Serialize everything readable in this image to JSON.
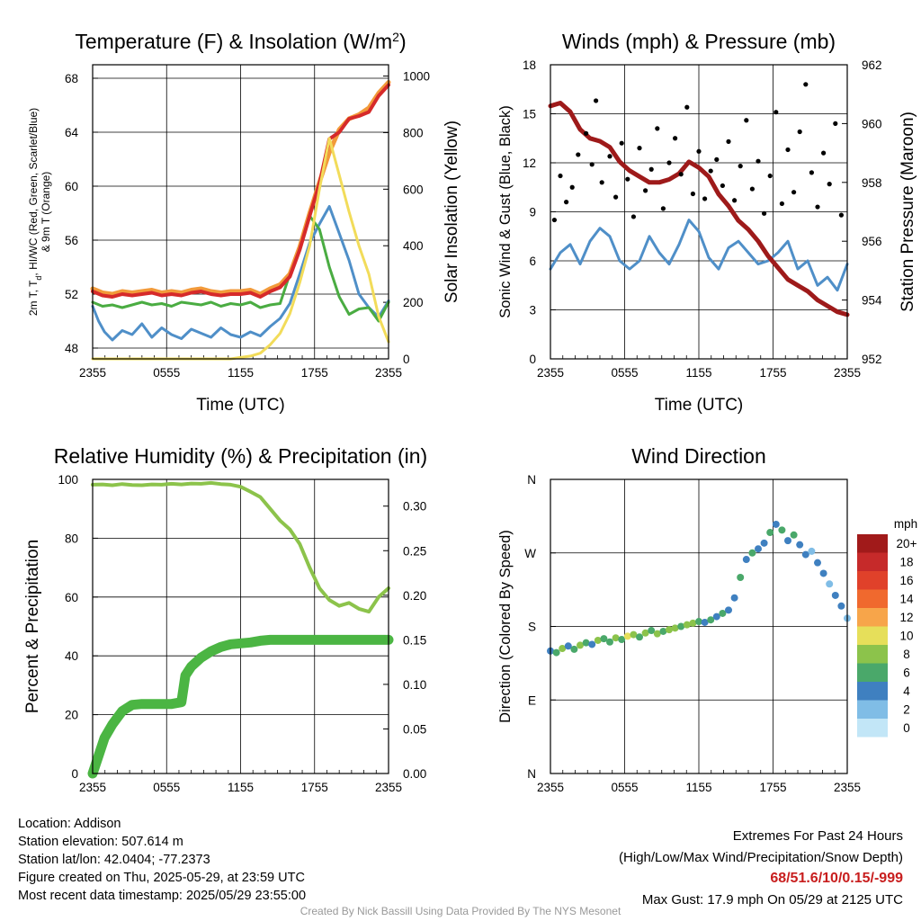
{
  "charts": [
    {
      "id": "temp",
      "type": "line",
      "title": "Temperature (F) & Insolation (W/m",
      "title_sup": "2",
      "title_close": ")",
      "xlabel": "Time (UTC)",
      "ylabel_line1": "2m T, T",
      "ylabel_sub": "d",
      "ylabel_line1_rest": ", HI/WC (Red, Green, Scarlet/Blue)",
      "ylabel_line2": "& 9m T (Orange)",
      "y2label": "Solar Insolation (Yellow)",
      "xticks": [
        "2355",
        "0555",
        "1155",
        "1755",
        "2355"
      ],
      "ylim": [
        47.2,
        69
      ],
      "yticks": [
        "48",
        "52",
        "56",
        "60",
        "64",
        "68"
      ],
      "y2lim": [
        0,
        1040
      ],
      "y2ticks": [
        "0",
        "200",
        "400",
        "600",
        "800",
        "1000"
      ],
      "series": [
        {
          "color": "#4f8fc8",
          "x": [
            0,
            0.3,
            0.6,
            1,
            1.5,
            2,
            2.5,
            3,
            3.5,
            4,
            4.5,
            5,
            5.5,
            6,
            6.5,
            7,
            7.5,
            8,
            8.5,
            9,
            9.5,
            10,
            10.5,
            11,
            11.5,
            12,
            12.5,
            13,
            13.5,
            14,
            14.5,
            15
          ],
          "y": [
            51.1,
            50.0,
            49.2,
            48.6,
            49.3,
            49.0,
            49.8,
            48.8,
            49.5,
            49.0,
            48.7,
            49.4,
            49.1,
            48.8,
            49.5,
            49.0,
            48.8,
            49.2,
            48.9,
            49.6,
            50.2,
            51.3,
            53.5,
            55.8,
            57.2,
            58.5,
            56.5,
            54.5,
            52.0,
            51.0,
            50.3,
            51.5
          ]
        },
        {
          "color": "#4aac42",
          "x": [
            0,
            0.5,
            1,
            1.5,
            2,
            2.5,
            3,
            3.5,
            4,
            4.5,
            5,
            5.5,
            6,
            6.5,
            7,
            7.5,
            8,
            8.5,
            9,
            9.5,
            10,
            10.5,
            11,
            11.5,
            12,
            12.5,
            13,
            13.5,
            14,
            14.5,
            15
          ],
          "y": [
            51.4,
            51.1,
            51.2,
            51.0,
            51.2,
            51.4,
            51.2,
            51.3,
            51.1,
            51.4,
            51.3,
            51.2,
            51.4,
            51.1,
            51.3,
            51.2,
            51.4,
            51.0,
            51.2,
            51.3,
            53.5,
            55.5,
            57.8,
            56.8,
            54.0,
            51.8,
            50.5,
            50.9,
            51.0,
            50.0,
            51.4
          ]
        },
        {
          "color": "#f29a3a",
          "width": 5,
          "x": [
            0,
            0.5,
            1,
            1.5,
            2,
            2.5,
            3,
            3.5,
            4,
            4.5,
            5,
            5.5,
            6,
            6.5,
            7,
            7.5,
            8,
            8.5,
            9,
            9.5,
            10,
            10.5,
            11,
            11.5,
            12,
            12.5,
            13,
            13.5,
            14,
            14.5,
            15
          ],
          "y": [
            52.4,
            52.1,
            52.0,
            52.2,
            52.1,
            52.2,
            52.3,
            52.1,
            52.2,
            52.1,
            52.3,
            52.4,
            52.2,
            52.1,
            52.2,
            52.2,
            52.3,
            52.0,
            52.4,
            52.7,
            53.5,
            55.5,
            58.0,
            60.3,
            62.5,
            64.2,
            65.0,
            65.3,
            65.8,
            66.9,
            67.7
          ]
        },
        {
          "color": "#d62a2a",
          "width": 4,
          "x": [
            0,
            0.5,
            1,
            1.5,
            2,
            2.5,
            3,
            3.5,
            4,
            4.5,
            5,
            5.5,
            6,
            6.5,
            7,
            7.5,
            8,
            8.5,
            9,
            9.5,
            10,
            10.5,
            11,
            11.5,
            12,
            12.5,
            13,
            13.5,
            14,
            14.5,
            15
          ],
          "y": [
            52.2,
            51.9,
            51.8,
            52.0,
            51.9,
            52.0,
            52.1,
            51.9,
            52.0,
            51.9,
            52.1,
            52.2,
            52.0,
            51.9,
            52.0,
            52.0,
            52.1,
            51.8,
            52.2,
            52.5,
            53.3,
            55.3,
            57.8,
            60.2,
            63.5,
            64.0,
            65.0,
            65.2,
            65.5,
            66.7,
            67.5
          ]
        },
        {
          "color": "#f2dc5a",
          "axis": "y2",
          "x": [
            0,
            1,
            2,
            3,
            4,
            5,
            6,
            7,
            7.5,
            8,
            8.5,
            9,
            9.5,
            10,
            10.5,
            11,
            11.5,
            12,
            12.5,
            13,
            13.5,
            14,
            14.5,
            15
          ],
          "y": [
            0,
            0,
            0,
            0,
            0,
            0,
            0,
            0,
            5,
            10,
            20,
            50,
            90,
            160,
            270,
            400,
            600,
            780,
            650,
            520,
            400,
            300,
            150,
            60
          ]
        }
      ]
    },
    {
      "id": "wind",
      "type": "line",
      "title": "Winds (mph) & Pressure (mb)",
      "xlabel": "Time (UTC)",
      "ylabel": "Sonic Wind & Gust (Blue, Black)",
      "y2label": "Station Pressure (Maroon)",
      "xticks": [
        "2355",
        "0555",
        "1155",
        "1755",
        "2355"
      ],
      "ylim": [
        0,
        18
      ],
      "yticks": [
        "0",
        "3",
        "6",
        "9",
        "12",
        "15",
        "18"
      ],
      "y2lim": [
        952,
        962
      ],
      "y2ticks": [
        "952",
        "954",
        "956",
        "958",
        "960",
        "962"
      ],
      "series": [
        {
          "color": "#4f8fc8",
          "x": [
            0,
            0.5,
            1,
            1.5,
            2,
            2.5,
            3,
            3.5,
            4,
            4.5,
            5,
            5.5,
            6,
            6.5,
            7,
            7.5,
            8,
            8.5,
            9,
            9.5,
            10,
            10.5,
            11,
            11.5,
            12,
            12.5,
            13,
            13.5,
            14,
            14.5,
            15
          ],
          "y": [
            5.5,
            6.5,
            7.0,
            5.8,
            7.2,
            8.0,
            7.5,
            6.0,
            5.5,
            6.0,
            7.5,
            6.5,
            5.8,
            7.0,
            8.5,
            7.8,
            6.2,
            5.5,
            6.8,
            7.2,
            6.5,
            5.8,
            6.0,
            6.5,
            7.2,
            5.5,
            6.0,
            4.5,
            5.0,
            4.2,
            5.8
          ]
        },
        {
          "color": "#9e1a1a",
          "width": 5,
          "axis": "y2",
          "x": [
            0,
            0.5,
            1,
            1.5,
            2,
            2.5,
            3,
            3.5,
            4,
            4.5,
            5,
            5.5,
            6,
            6.5,
            7,
            7.5,
            8,
            8.5,
            9,
            9.5,
            10,
            10.5,
            11,
            11.5,
            12,
            12.5,
            13,
            13.5,
            14,
            14.5,
            15
          ],
          "y": [
            960.6,
            960.7,
            960.4,
            959.8,
            959.5,
            959.4,
            959.2,
            958.7,
            958.4,
            958.2,
            958.0,
            958.0,
            958.1,
            958.3,
            958.7,
            958.5,
            958.2,
            957.6,
            957.2,
            956.7,
            956.4,
            956.0,
            955.5,
            955.1,
            954.7,
            954.5,
            954.3,
            954.0,
            953.8,
            953.6,
            953.5
          ]
        }
      ],
      "gust_points": {
        "color": "#000000",
        "x": [
          0.2,
          0.5,
          0.8,
          1.1,
          1.4,
          1.8,
          2.1,
          2.3,
          2.6,
          3.0,
          3.3,
          3.6,
          3.9,
          4.2,
          4.5,
          4.8,
          5.1,
          5.4,
          5.7,
          6.0,
          6.3,
          6.6,
          6.9,
          7.2,
          7.5,
          7.8,
          8.1,
          8.4,
          8.7,
          9.0,
          9.3,
          9.6,
          9.9,
          10.2,
          10.5,
          10.8,
          11.1,
          11.4,
          11.7,
          12.0,
          12.3,
          12.6,
          12.9,
          13.2,
          13.5,
          13.8,
          14.1,
          14.4,
          14.7
        ],
        "y": [
          8.5,
          11.2,
          9.6,
          10.5,
          12.5,
          13.8,
          11.9,
          15.8,
          10.8,
          12.4,
          9.9,
          13.2,
          11.0,
          8.7,
          12.9,
          10.3,
          11.6,
          14.1,
          9.2,
          12.0,
          13.5,
          11.3,
          15.4,
          10.1,
          12.7,
          9.8,
          11.5,
          12.2,
          10.6,
          13.3,
          9.7,
          11.8,
          14.6,
          10.4,
          12.1,
          8.9,
          11.2,
          15.1,
          9.5,
          12.8,
          10.2,
          13.9,
          16.8,
          11.4,
          9.3,
          12.6,
          10.7,
          14.4,
          8.8
        ]
      }
    },
    {
      "id": "rh",
      "type": "line",
      "title": "Relative Humidity (%) & Precipitation (in)",
      "xlabel": "",
      "ylabel": "Percent & Precipitation",
      "xticks": [
        "2355",
        "0555",
        "1155",
        "1755",
        "2355"
      ],
      "ylim": [
        0,
        100
      ],
      "yticks": [
        "0",
        "20",
        "40",
        "60",
        "80",
        "100"
      ],
      "y2lim": [
        0,
        0.33
      ],
      "y2ticks": [
        "0.00",
        "0.05",
        "0.10",
        "0.15",
        "0.20",
        "0.25",
        "0.30"
      ],
      "series": [
        {
          "color": "#8cc34b",
          "width": 4,
          "x": [
            0,
            0.5,
            1,
            1.5,
            2,
            2.5,
            3,
            3.5,
            4,
            4.5,
            5,
            5.5,
            6,
            6.5,
            7,
            7.5,
            8,
            8.5,
            9,
            9.5,
            10,
            10.5,
            11,
            11.5,
            12,
            12.5,
            13,
            13.5,
            14,
            14.5,
            15
          ],
          "y": [
            98.2,
            98.3,
            98.0,
            98.4,
            98.1,
            98.0,
            98.3,
            98.2,
            98.5,
            98.3,
            98.6,
            98.5,
            98.8,
            98.4,
            98.2,
            97.5,
            95.8,
            94.0,
            90.0,
            86.0,
            83.0,
            78.0,
            70.0,
            63.0,
            59.0,
            57.0,
            58.0,
            56.0,
            55.0,
            60.0,
            63.0
          ]
        },
        {
          "color": "#4bb543",
          "width": 11,
          "axis": "y2",
          "x": [
            0,
            0.3,
            0.6,
            1,
            1.5,
            2,
            2.5,
            3,
            3.5,
            4,
            4.5,
            4.7,
            5,
            5.5,
            6,
            6.5,
            7,
            7.5,
            8,
            8.5,
            9,
            9.5,
            10,
            10.5,
            11,
            11.5,
            12,
            12.5,
            13,
            13.5,
            14,
            14.5,
            15
          ],
          "y": [
            0,
            0.02,
            0.04,
            0.055,
            0.07,
            0.077,
            0.078,
            0.078,
            0.078,
            0.078,
            0.08,
            0.11,
            0.12,
            0.13,
            0.137,
            0.142,
            0.145,
            0.146,
            0.147,
            0.149,
            0.15,
            0.15,
            0.15,
            0.15,
            0.15,
            0.15,
            0.15,
            0.15,
            0.15,
            0.15,
            0.15,
            0.15,
            0.15
          ]
        }
      ]
    },
    {
      "id": "dir",
      "type": "scatter",
      "title": "Wind Direction",
      "ylabel": "Direction (Colored By Speed)",
      "xticks": [
        "2355",
        "0555",
        "1155",
        "1755",
        "2355"
      ],
      "ylim": [
        0,
        360
      ],
      "yticks": [
        "N",
        "E",
        "S",
        "W",
        "N"
      ],
      "legend_title": "mph",
      "legend_placement": "right",
      "legend": [
        {
          "label": "20+",
          "color": "#a11a1a"
        },
        {
          "label": "18",
          "color": "#c62a2a"
        },
        {
          "label": "16",
          "color": "#e0412a"
        },
        {
          "label": "14",
          "color": "#f0692e"
        },
        {
          "label": "12",
          "color": "#f7a54a"
        },
        {
          "label": "10",
          "color": "#e6df5a"
        },
        {
          "label": "8",
          "color": "#8cc34b"
        },
        {
          "label": "6",
          "color": "#4aa86a"
        },
        {
          "label": "4",
          "color": "#3f80c0"
        },
        {
          "label": "2",
          "color": "#80bde6"
        },
        {
          "label": "0",
          "color": "#c2e6f7"
        }
      ],
      "points": {
        "x": [
          0,
          0.3,
          0.6,
          0.9,
          1.2,
          1.5,
          1.8,
          2.1,
          2.4,
          2.7,
          3.0,
          3.3,
          3.6,
          3.9,
          4.2,
          4.5,
          4.8,
          5.1,
          5.4,
          5.7,
          6.0,
          6.3,
          6.6,
          6.9,
          7.2,
          7.5,
          7.8,
          8.1,
          8.4,
          8.7,
          9.0,
          9.3,
          9.6,
          9.9,
          10.2,
          10.5,
          10.8,
          11.1,
          11.4,
          11.7,
          12.0,
          12.3,
          12.6,
          12.9,
          13.2,
          13.5,
          13.8,
          14.1,
          14.4,
          14.7,
          15
        ],
        "y": [
          150,
          148,
          153,
          156,
          152,
          157,
          160,
          158,
          163,
          165,
          161,
          166,
          164,
          168,
          170,
          167,
          172,
          175,
          171,
          174,
          176,
          178,
          180,
          182,
          184,
          186,
          185,
          188,
          192,
          196,
          200,
          215,
          240,
          262,
          270,
          275,
          282,
          295,
          305,
          298,
          285,
          292,
          280,
          268,
          272,
          258,
          245,
          232,
          218,
          205,
          190
        ],
        "c": [
          4,
          6,
          8,
          4,
          6,
          8,
          6,
          4,
          8,
          6,
          6,
          8,
          6,
          10,
          8,
          6,
          8,
          6,
          8,
          6,
          8,
          8,
          6,
          8,
          8,
          6,
          4,
          6,
          4,
          6,
          4,
          4,
          6,
          4,
          6,
          4,
          4,
          6,
          4,
          6,
          4,
          6,
          4,
          4,
          2,
          4,
          4,
          2,
          4,
          4,
          2
        ]
      }
    }
  ],
  "info_left": [
    "Location: Addison",
    "Station elevation: 507.614 m",
    "Station lat/lon: 42.0404; -77.2373",
    "Figure created on Thu, 2025-05-29, at 23:59 UTC",
    "Most recent data timestamp: 2025/05/29 23:55:00"
  ],
  "info_right": {
    "line1": "Extremes For Past 24 Hours",
    "line2": "(High/Low/Max Wind/Precipitation/Snow Depth)",
    "values": "68/51.6/10/0.15/-999",
    "gust": "Max Gust: 17.9 mph On 05/29 at 2125 UTC"
  },
  "credit": "Created By Nick Bassill Using Data Provided By The NYS Mesonet"
}
